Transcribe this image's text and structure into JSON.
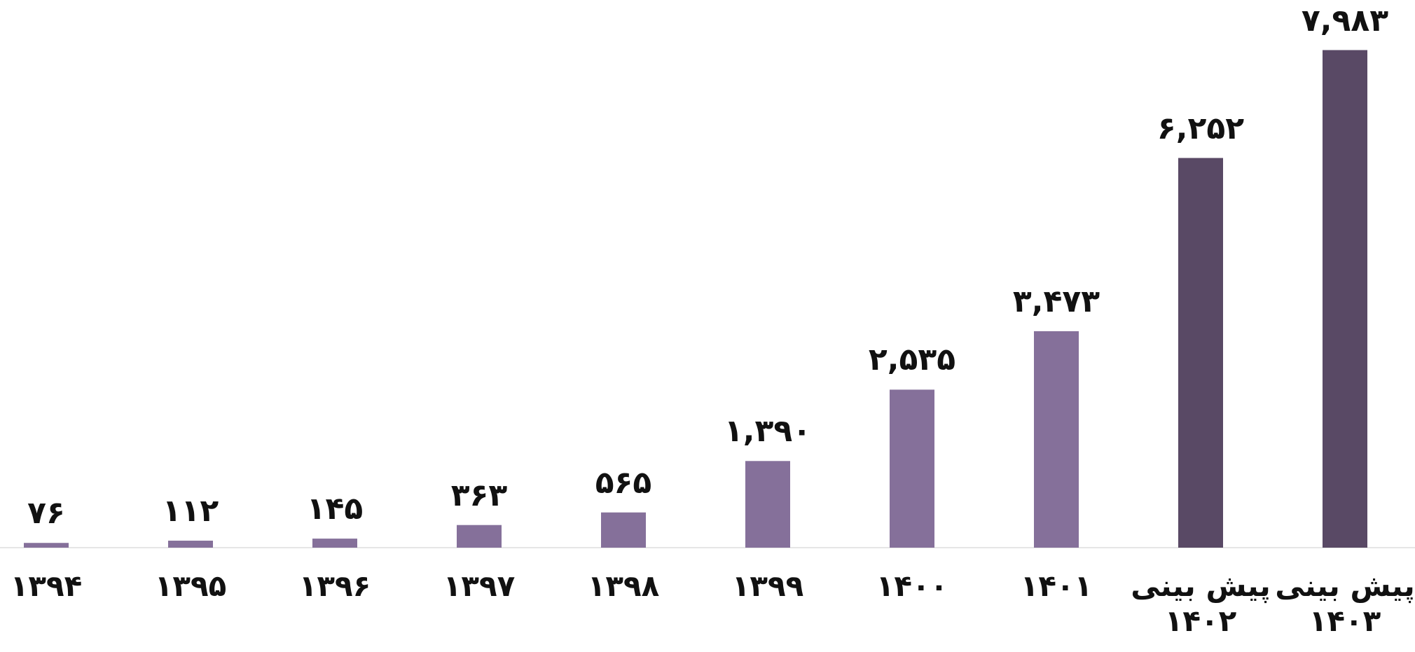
{
  "chart_data": {
    "type": "bar",
    "categories": [
      "۱۳۹۴",
      "۱۳۹۵",
      "۱۳۹۶",
      "۱۳۹۷",
      "۱۳۹۸",
      "۱۳۹۹",
      "۱۴۰۰",
      "۱۴۰۱",
      "پیش بینی ۱۴۰۲",
      "پیش بینی ۱۴۰۳"
    ],
    "values": [
      76,
      112,
      145,
      363,
      565,
      1390,
      2535,
      3473,
      6252,
      7983
    ],
    "value_labels": [
      "۷۶",
      "۱۱۲",
      "۱۴۵",
      "۳۶۳",
      "۵۶۵",
      "۱,۳۹۰",
      "۲,۵۳۵",
      "۳,۴۷۳",
      "۶,۲۵۲",
      "۷,۹۸۳"
    ],
    "colors": [
      "#85709a",
      "#85709a",
      "#85709a",
      "#85709a",
      "#85709a",
      "#85709a",
      "#85709a",
      "#85709a",
      "#594965",
      "#594965"
    ],
    "ylim": [
      0,
      8000
    ]
  }
}
